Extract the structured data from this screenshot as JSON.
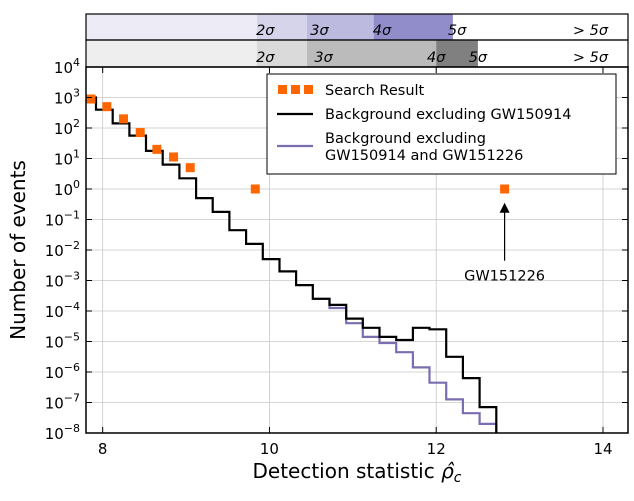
{
  "chart_data": {
    "type": "scatter",
    "xlabel": "Detection statistic",
    "xlabel_symbol": "ρ̂",
    "xlabel_subscript": "c",
    "ylabel": "Number of events",
    "xlim": [
      7.8,
      14.3
    ],
    "ylim_log10": [
      -8,
      4
    ],
    "yscale": "log",
    "grid": true,
    "x_ticks": [
      8,
      10,
      12,
      14
    ],
    "y_ticks": [
      {
        "exp": -8,
        "label": "10",
        "sup": "−8"
      },
      {
        "exp": -7,
        "label": "10",
        "sup": "−7"
      },
      {
        "exp": -6,
        "label": "10",
        "sup": "−6"
      },
      {
        "exp": -5,
        "label": "10",
        "sup": "−5"
      },
      {
        "exp": -4,
        "label": "10",
        "sup": "−4"
      },
      {
        "exp": -3,
        "label": "10",
        "sup": "−3"
      },
      {
        "exp": -2,
        "label": "10",
        "sup": "−2"
      },
      {
        "exp": -1,
        "label": "10",
        "sup": "−1"
      },
      {
        "exp": 0,
        "label": "10",
        "sup": "0"
      },
      {
        "exp": 1,
        "label": "10",
        "sup": "1"
      },
      {
        "exp": 2,
        "label": "10",
        "sup": "2"
      },
      {
        "exp": 3,
        "label": "10",
        "sup": "3"
      },
      {
        "exp": 4,
        "label": "10",
        "sup": "4"
      }
    ],
    "legend_placement": "top-right",
    "series": [
      {
        "name": "Search Result",
        "kind": "points",
        "color": "#ff6600",
        "x": [
          7.86,
          8.05,
          8.25,
          8.45,
          8.65,
          8.85,
          9.05,
          9.83,
          12.82
        ],
        "log10_y": [
          2.95,
          2.7,
          2.3,
          1.85,
          1.3,
          1.05,
          0.7,
          0.0,
          0.0
        ]
      },
      {
        "name": "Background excluding GW150914",
        "kind": "step",
        "color": "#000000",
        "edges": [
          7.8,
          7.92,
          8.12,
          8.32,
          8.52,
          8.72,
          8.92,
          9.12,
          9.32,
          9.52,
          9.72,
          9.92,
          10.12,
          10.32,
          10.52,
          10.72,
          10.92,
          11.12,
          11.32,
          11.52,
          11.72,
          11.92,
          12.12,
          12.32,
          12.52,
          12.72
        ],
        "log10_y": [
          3.0,
          2.6,
          2.15,
          1.75,
          1.25,
          0.8,
          0.35,
          -0.3,
          -0.75,
          -1.35,
          -1.8,
          -2.3,
          -2.7,
          -3.15,
          -3.6,
          -3.8,
          -4.25,
          -4.55,
          -4.85,
          -4.95,
          -4.55,
          -4.6,
          -5.5,
          -6.2,
          -7.15
        ],
        "tail": [
          [
            12.72,
            -7.15
          ],
          [
            12.72,
            -8.0
          ]
        ]
      },
      {
        "name": "Background excluding GW150914 and GW151226",
        "label_lines": [
          "Background excluding",
          "GW150914 and GW151226"
        ],
        "kind": "step",
        "color": "#7b6db0",
        "edges": [
          10.52,
          10.72,
          10.92,
          11.12,
          11.32,
          11.52,
          11.72,
          11.92,
          12.12,
          12.32,
          12.52,
          12.72
        ],
        "log10_y": [
          -3.6,
          -3.9,
          -4.4,
          -4.85,
          -5.05,
          -5.35,
          -5.85,
          -6.35,
          -6.9,
          -7.35,
          -7.7
        ],
        "tail": [
          [
            12.72,
            -7.7
          ],
          [
            12.72,
            -8.0
          ]
        ]
      }
    ],
    "annotations": [
      {
        "text": "GW151226",
        "point_x": 12.82,
        "point_log10_y": -0.45,
        "text_x": 12.82,
        "text_log10_y": -2.35
      }
    ],
    "significance_bands": [
      {
        "name": "top",
        "color": "#6c66b8",
        "segments": [
          {
            "from": 7.8,
            "to": 9.85,
            "alpha": 0.12
          },
          {
            "from": 9.85,
            "to": 10.45,
            "alpha": 0.28
          },
          {
            "from": 10.45,
            "to": 11.25,
            "alpha": 0.45
          },
          {
            "from": 11.25,
            "to": 12.2,
            "alpha": 0.75
          }
        ],
        "labels": [
          {
            "x": 9.95,
            "text": "2σ"
          },
          {
            "x": 10.6,
            "text": "3σ"
          },
          {
            "x": 11.35,
            "text": "4σ"
          },
          {
            "x": 12.25,
            "text": "5σ"
          },
          {
            "x": 13.85,
            "text": "> 5σ"
          }
        ]
      },
      {
        "name": "bottom",
        "color": "#555555",
        "segments": [
          {
            "from": 7.8,
            "to": 9.85,
            "alpha": 0.1
          },
          {
            "from": 9.85,
            "to": 10.45,
            "alpha": 0.22
          },
          {
            "from": 10.45,
            "to": 12.0,
            "alpha": 0.4
          },
          {
            "from": 12.0,
            "to": 12.5,
            "alpha": 0.75
          }
        ],
        "labels": [
          {
            "x": 9.95,
            "text": "2σ"
          },
          {
            "x": 10.65,
            "text": "3σ"
          },
          {
            "x": 12.0,
            "text": "4σ"
          },
          {
            "x": 12.5,
            "text": "5σ"
          },
          {
            "x": 13.85,
            "text": "> 5σ"
          }
        ]
      }
    ]
  }
}
